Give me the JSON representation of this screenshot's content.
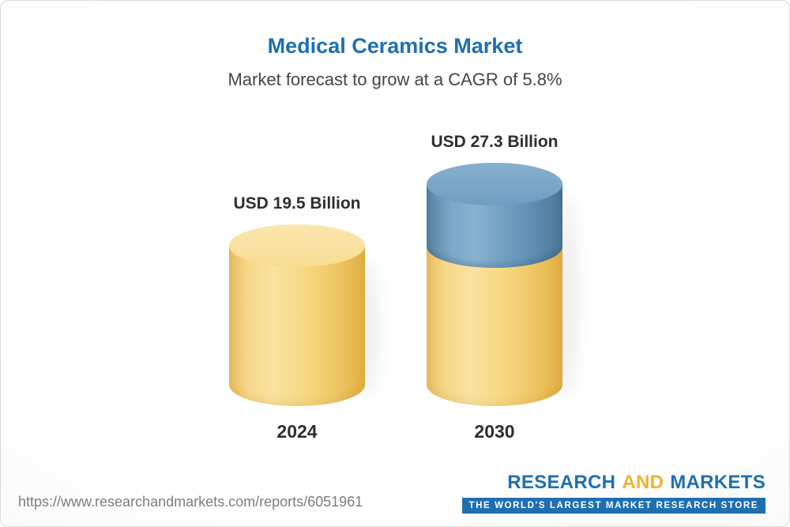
{
  "header": {
    "title": "Medical Ceramics Market",
    "subtitle": "Market forecast to grow at a CAGR of 5.8%"
  },
  "chart_data": {
    "type": "bar",
    "title": "Medical Ceramics Market",
    "subtitle": "Market forecast to grow at a CAGR of 5.8%",
    "categories": [
      "2024",
      "2030"
    ],
    "values": [
      19.5,
      27.3
    ],
    "value_labels": [
      "USD 19.5 Billion",
      "USD 27.3 Billion"
    ],
    "unit": "USD Billion",
    "cagr_percent": 5.8,
    "xlabel": "",
    "ylabel": "",
    "grid": false,
    "legend_position": "none",
    "bar_style": "3d-cylinder",
    "colors": {
      "base_segment": "#f5cf72",
      "growth_segment": "#6f9dc0",
      "title_text": "#1e6fb2",
      "label_text": "#2e2e2e"
    },
    "notes": "2030 cylinder shows growth portion (blue) stacked on top of base value (yellow)"
  },
  "footer": {
    "url": "https://www.researchandmarkets.com/reports/6051961",
    "logo": {
      "word1": "RESEARCH",
      "word2": "AND",
      "word3": "MARKETS",
      "tagline": "THE WORLD'S LARGEST MARKET RESEARCH STORE"
    }
  }
}
